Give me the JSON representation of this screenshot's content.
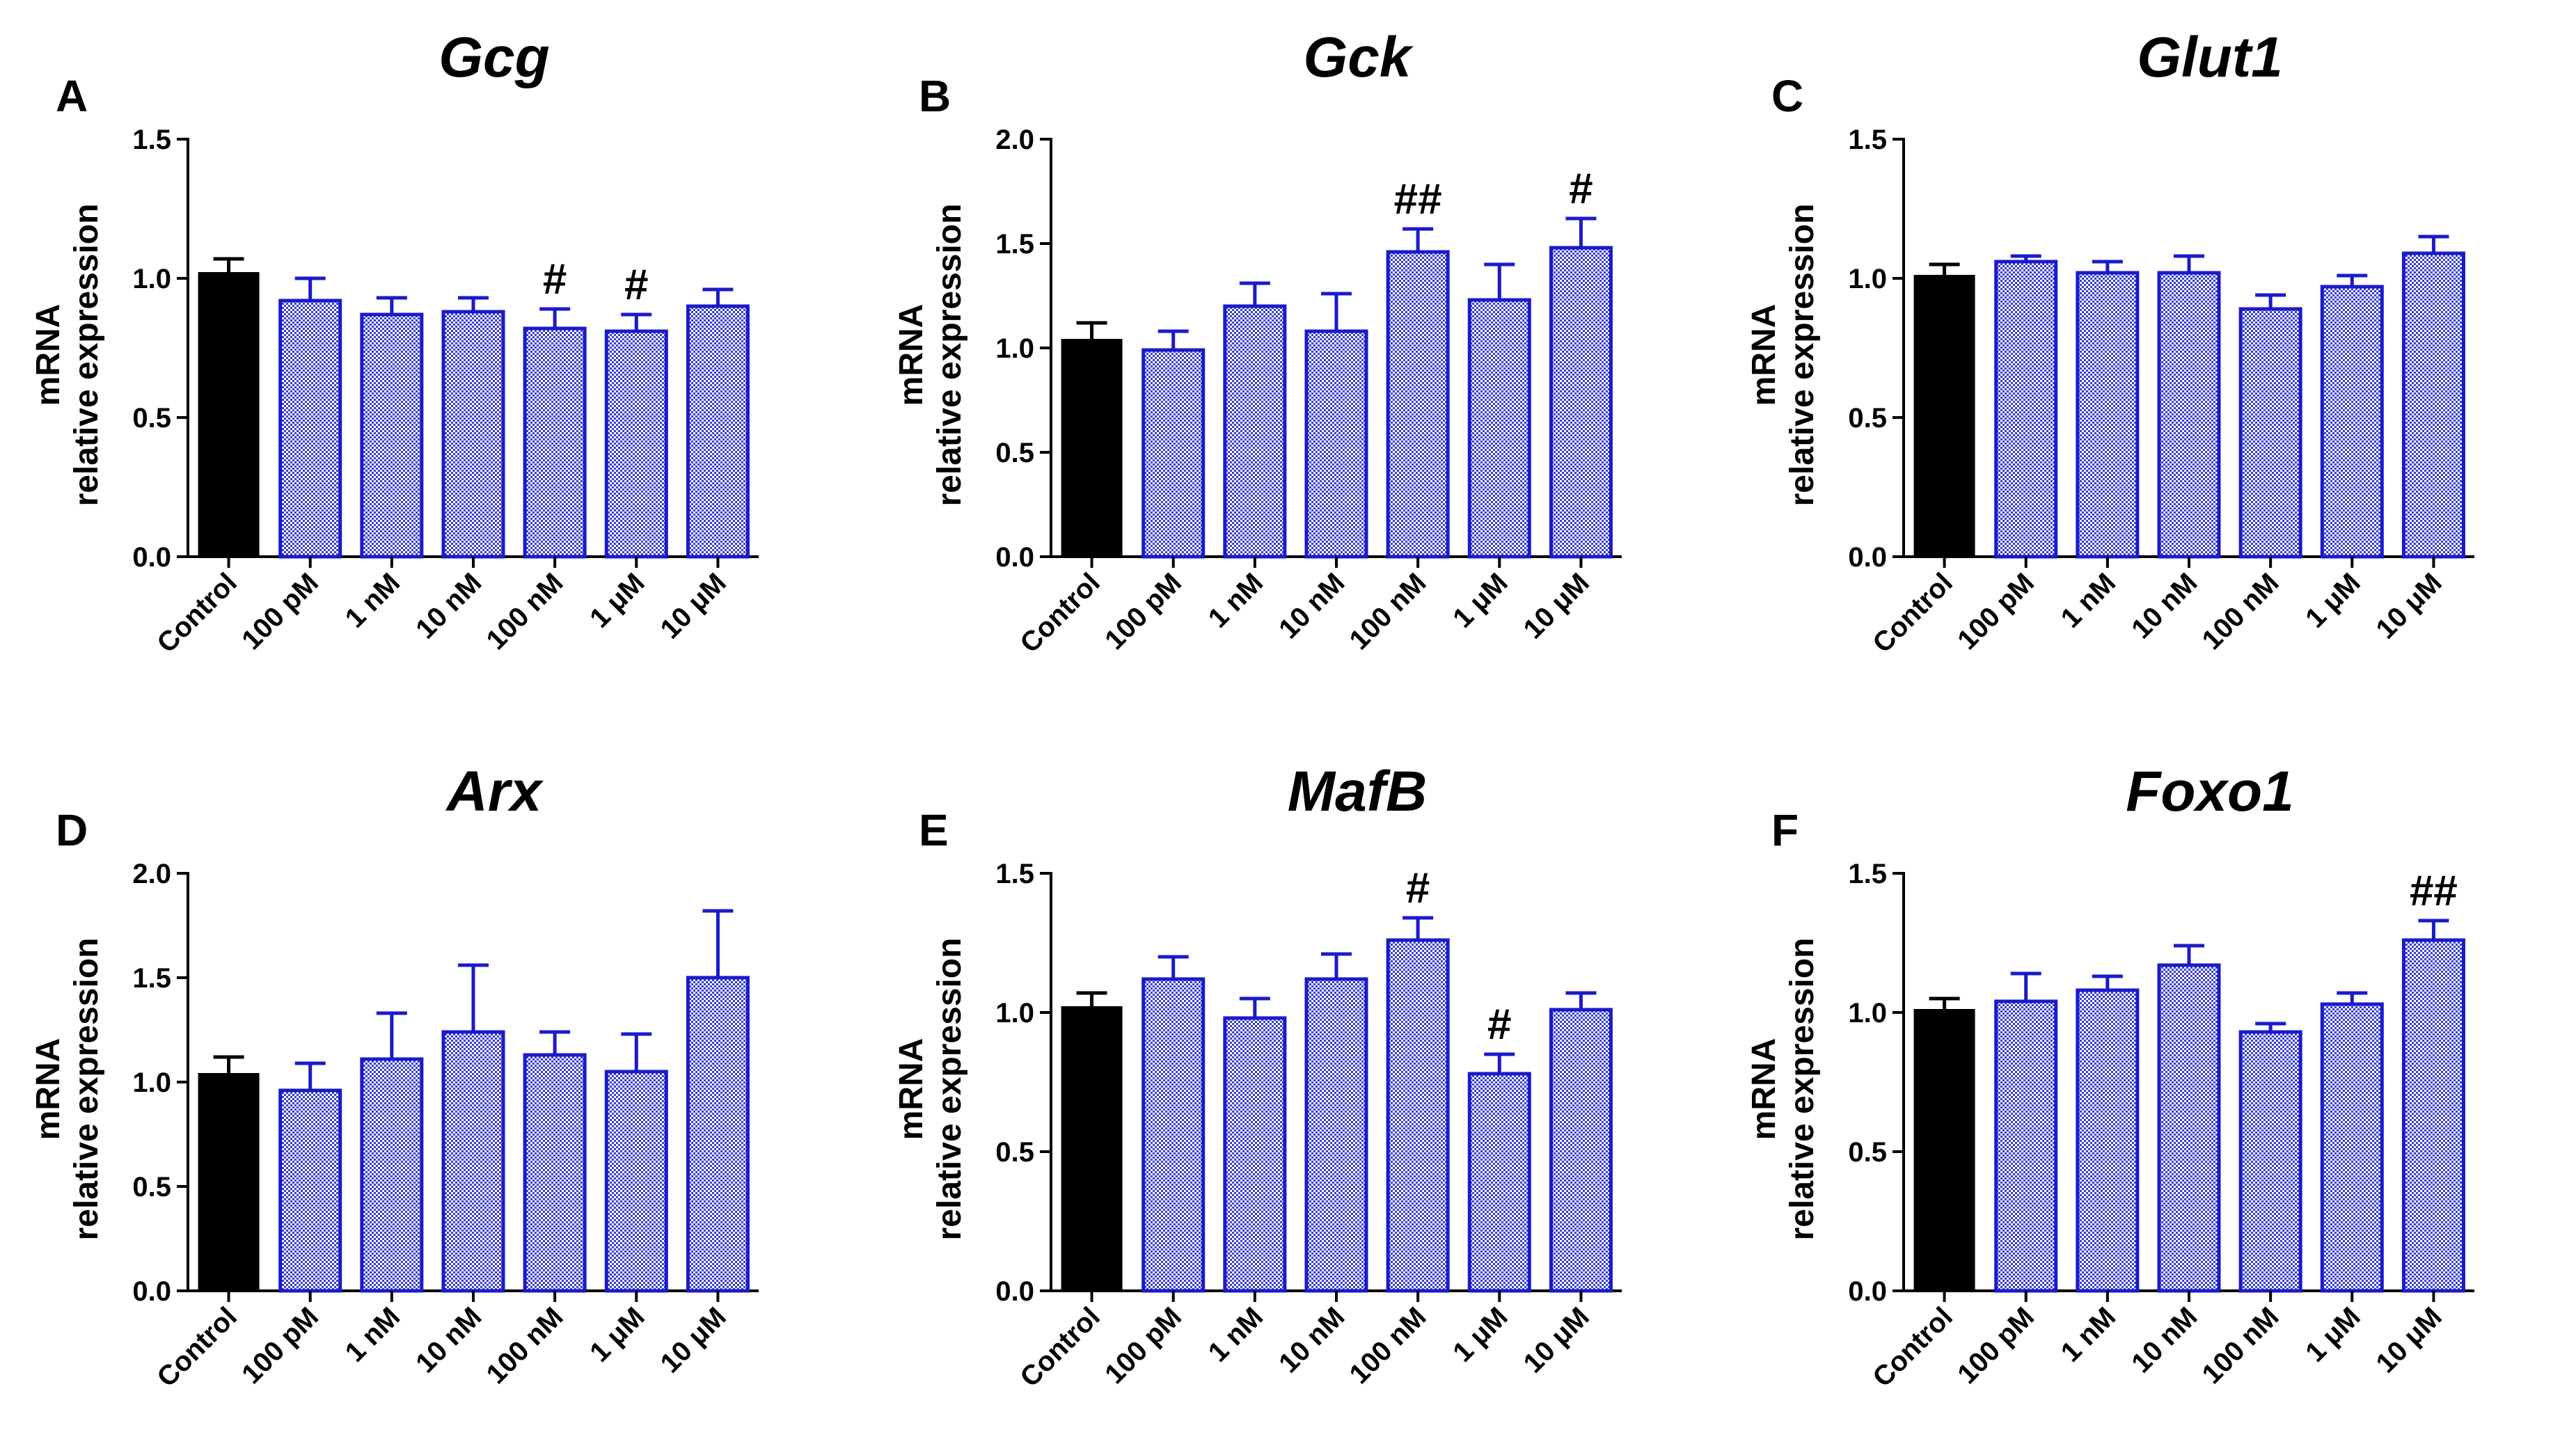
{
  "colors": {
    "control_bar": "#000000",
    "treatment_bar_stroke": "#1a1acc",
    "treatment_bar_fill": "#b5b8ee",
    "axis": "#000000"
  },
  "chart_data": [
    {
      "type": "bar",
      "panel": "A",
      "title": "Gcg",
      "ylabel_lines": [
        "mRNA",
        "relative expression"
      ],
      "categories": [
        "Control",
        "100 pM",
        "1 nM",
        "10 nM",
        "100 nM",
        "1 μM",
        "10 μM"
      ],
      "values": [
        1.02,
        0.92,
        0.87,
        0.88,
        0.82,
        0.81,
        0.9
      ],
      "errors": [
        0.05,
        0.08,
        0.06,
        0.05,
        0.07,
        0.06,
        0.06
      ],
      "significance": [
        "",
        "",
        "",
        "",
        "#",
        "#",
        ""
      ],
      "ylim": [
        0,
        1.5
      ],
      "yticks": [
        0.0,
        0.5,
        1.0,
        1.5
      ],
      "ytick_labels": [
        "0.0",
        "0.5",
        "1.0",
        "1.5"
      ]
    },
    {
      "type": "bar",
      "panel": "B",
      "title": "Gck",
      "ylabel_lines": [
        "mRNA",
        "relative expression"
      ],
      "categories": [
        "Control",
        "100 pM",
        "1 nM",
        "10 nM",
        "100 nM",
        "1 μM",
        "10 μM"
      ],
      "values": [
        1.04,
        0.99,
        1.2,
        1.08,
        1.46,
        1.23,
        1.48
      ],
      "errors": [
        0.08,
        0.09,
        0.11,
        0.18,
        0.11,
        0.17,
        0.14
      ],
      "significance": [
        "",
        "",
        "",
        "",
        "##",
        "",
        "#"
      ],
      "ylim": [
        0,
        2.0
      ],
      "yticks": [
        0.0,
        0.5,
        1.0,
        1.5,
        2.0
      ],
      "ytick_labels": [
        "0.0",
        "0.5",
        "1.0",
        "1.5",
        "2.0"
      ]
    },
    {
      "type": "bar",
      "panel": "C",
      "title": "Glut1",
      "ylabel_lines": [
        "mRNA",
        "relative expression"
      ],
      "categories": [
        "Control",
        "100 pM",
        "1 nM",
        "10 nM",
        "100 nM",
        "1 μM",
        "10 μM"
      ],
      "values": [
        1.01,
        1.06,
        1.02,
        1.02,
        0.89,
        0.97,
        1.09
      ],
      "errors": [
        0.04,
        0.02,
        0.04,
        0.06,
        0.05,
        0.04,
        0.06
      ],
      "significance": [
        "",
        "",
        "",
        "",
        "",
        "",
        ""
      ],
      "ylim": [
        0,
        1.5
      ],
      "yticks": [
        0.0,
        0.5,
        1.0,
        1.5
      ],
      "ytick_labels": [
        "0.0",
        "0.5",
        "1.0",
        "1.5"
      ]
    },
    {
      "type": "bar",
      "panel": "D",
      "title": "Arx",
      "ylabel_lines": [
        "mRNA",
        "relative expression"
      ],
      "categories": [
        "Control",
        "100 pM",
        "1 nM",
        "10 nM",
        "100 nM",
        "1 μM",
        "10 μM"
      ],
      "values": [
        1.04,
        0.96,
        1.11,
        1.24,
        1.13,
        1.05,
        1.5
      ],
      "errors": [
        0.08,
        0.13,
        0.22,
        0.32,
        0.11,
        0.18,
        0.32
      ],
      "significance": [
        "",
        "",
        "",
        "",
        "",
        "",
        ""
      ],
      "ylim": [
        0,
        2.0
      ],
      "yticks": [
        0.0,
        0.5,
        1.0,
        1.5,
        2.0
      ],
      "ytick_labels": [
        "0.0",
        "0.5",
        "1.0",
        "1.5",
        "2.0"
      ]
    },
    {
      "type": "bar",
      "panel": "E",
      "title": "MafB",
      "ylabel_lines": [
        "mRNA",
        "relative expression"
      ],
      "categories": [
        "Control",
        "100 pM",
        "1 nM",
        "10 nM",
        "100 nM",
        "1 μM",
        "10 μM"
      ],
      "values": [
        1.02,
        1.12,
        0.98,
        1.12,
        1.26,
        0.78,
        1.01
      ],
      "errors": [
        0.05,
        0.08,
        0.07,
        0.09,
        0.08,
        0.07,
        0.06
      ],
      "significance": [
        "",
        "",
        "",
        "",
        "#",
        "#",
        ""
      ],
      "ylim": [
        0,
        1.5
      ],
      "yticks": [
        0.0,
        0.5,
        1.0,
        1.5
      ],
      "ytick_labels": [
        "0.0",
        "0.5",
        "1.0",
        "1.5"
      ]
    },
    {
      "type": "bar",
      "panel": "F",
      "title": "Foxo1",
      "ylabel_lines": [
        "mRNA",
        "relative expression"
      ],
      "categories": [
        "Control",
        "100 pM",
        "1 nM",
        "10 nM",
        "100 nM",
        "1 μM",
        "10 μM"
      ],
      "values": [
        1.01,
        1.04,
        1.08,
        1.17,
        0.93,
        1.03,
        1.26
      ],
      "errors": [
        0.04,
        0.1,
        0.05,
        0.07,
        0.03,
        0.04,
        0.07
      ],
      "significance": [
        "",
        "",
        "",
        "",
        "",
        "",
        "##"
      ],
      "ylim": [
        0,
        1.5
      ],
      "yticks": [
        0.0,
        0.5,
        1.0,
        1.5
      ],
      "ytick_labels": [
        "0.0",
        "0.5",
        "1.0",
        "1.5"
      ]
    }
  ]
}
